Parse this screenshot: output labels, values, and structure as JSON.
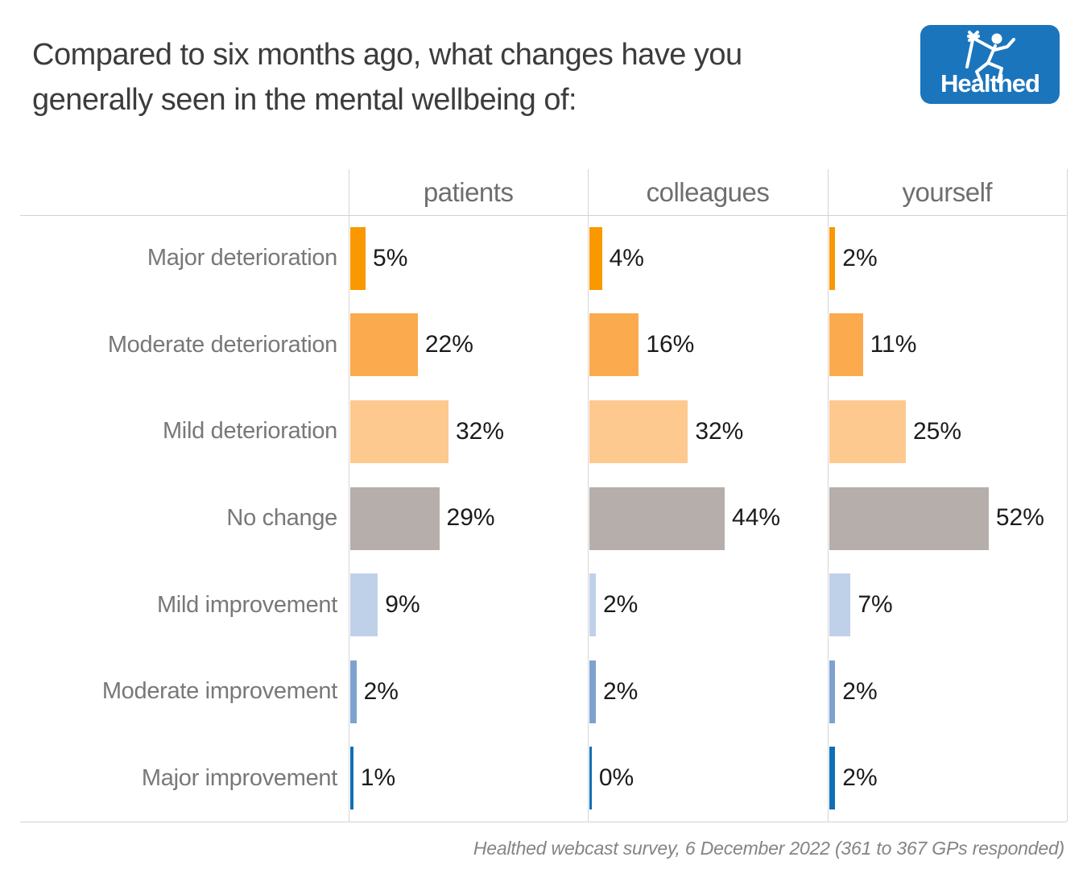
{
  "title": {
    "line1": "Compared to six months ago, what changes have you",
    "line2": "generally seen in the mental wellbeing of:"
  },
  "logo": {
    "text": "Healthed",
    "bg_color": "#1b75bc",
    "icon": "hermes-runner-icon"
  },
  "chart_data": {
    "type": "bar",
    "orientation": "horizontal",
    "title": "Compared to six months ago, what changes have you generally seen in the mental wellbeing of:",
    "categories": [
      "Major deterioration",
      "Moderate deterioration",
      "Mild deterioration",
      "No change",
      "Mild improvement",
      "Moderate improvement",
      "Major improvement"
    ],
    "series": [
      {
        "name": "patients",
        "values": [
          5,
          22,
          32,
          29,
          9,
          2,
          1
        ]
      },
      {
        "name": "colleagues",
        "values": [
          4,
          16,
          32,
          44,
          2,
          2,
          0
        ]
      },
      {
        "name": "yourself",
        "values": [
          2,
          11,
          25,
          52,
          7,
          2,
          2
        ]
      }
    ],
    "value_suffix": "%",
    "xlim": [
      0,
      78
    ],
    "legend": "none",
    "grid": "column-separators",
    "category_colors": [
      "#fa9800",
      "#fbaa4d",
      "#fdc98f",
      "#b6aeaa",
      "#bfd0e9",
      "#7ea2cf",
      "#0e6fb6"
    ],
    "label_color": "#787878",
    "value_label_color": "#1b1b1b"
  },
  "footer": "Healthed webcast survey, 6 December 2022 (361 to 367 GPs responded)"
}
